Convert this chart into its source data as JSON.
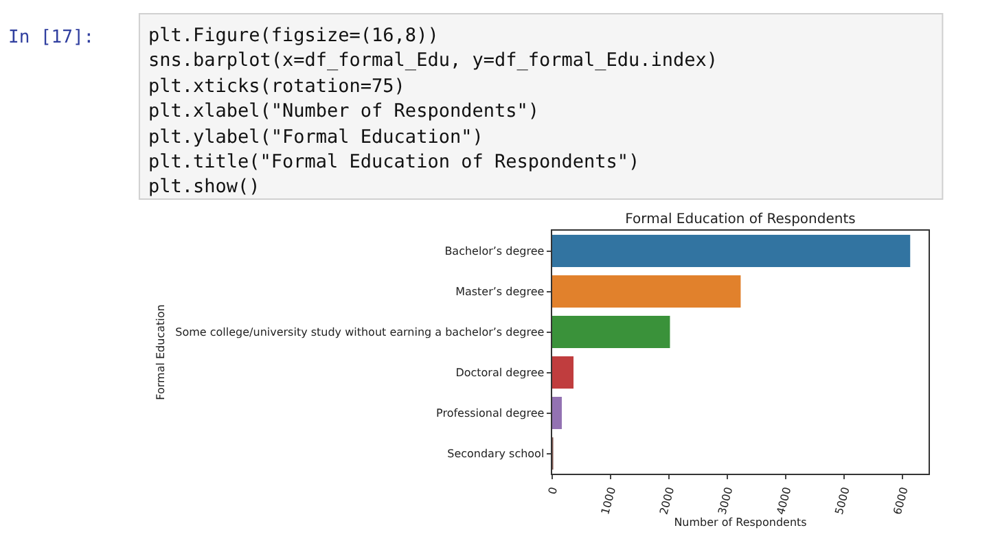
{
  "chart_data": {
    "type": "bar",
    "orientation": "horizontal",
    "title": "Formal Education of Respondents",
    "xlabel": "Number of Respondents",
    "ylabel": "Formal Education",
    "categories": [
      "Bachelor’s degree",
      "Master’s degree",
      "Some college/university study without earning a bachelor’s degree",
      "Doctoral degree",
      "Professional degree",
      "Secondary school"
    ],
    "values": [
      6130,
      3230,
      2020,
      370,
      170,
      10
    ],
    "colors": [
      "#3274a1",
      "#e1812c",
      "#3a923a",
      "#c03d3e",
      "#9372b2",
      "#845b53"
    ],
    "xlim": [
      0,
      6450
    ],
    "xticks": [
      0,
      1000,
      2000,
      3000,
      4000,
      5000,
      6000
    ],
    "annotations": [
      "In [17]:",
      "plt.Figure(figsize=(16,8))",
      "sns.barplot(x=df_formal_Edu, y=df_formal_Edu.index)",
      "plt.xticks(rotation=75)",
      "plt.xlabel(\"Number of Respondents\")",
      "plt.ylabel(\"Formal Education\")",
      "plt.title(\"Formal Education of Respondents\")",
      "plt.show()"
    ]
  }
}
